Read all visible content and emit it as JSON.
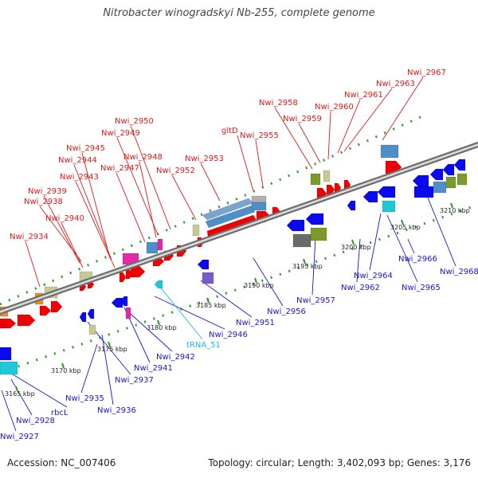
{
  "title": "Nitrobacter winogradskyi Nb-255, complete genome",
  "footer": {
    "accession": "Accession: NC_007406",
    "topology": "Topology: circular; Length: 3,402,093 bp; Genes: 3,176"
  },
  "colors": {
    "forward_label": "#e01818",
    "reverse_label": "#1818cc",
    "trna_label": "#22b8e6",
    "backbone": "#888888",
    "tick_track": "#2e9a2e"
  },
  "scale": {
    "ticks": [
      {
        "label": "3165 kbp"
      },
      {
        "label": "3170 kbp"
      },
      {
        "label": "3175 kbp"
      },
      {
        "label": "3180 kbp"
      },
      {
        "label": "3185 kbp"
      },
      {
        "label": "3190 kbp"
      },
      {
        "label": "3195 kbp"
      },
      {
        "label": "3200 kbp"
      },
      {
        "label": "3205 kbp"
      },
      {
        "label": "3210 kbp"
      }
    ]
  },
  "forward_labels": [
    "Nwi_2934",
    "Nwi_2938",
    "Nwi_2939",
    "Nwi_2940",
    "Nwi_2943",
    "Nwi_2944",
    "Nwi_2945",
    "Nwi_2947",
    "Nwi_2948",
    "Nwi_2949",
    "Nwi_2950",
    "Nwi_2952",
    "Nwi_2953",
    "gltD",
    "Nwi_2955",
    "Nwi_2958",
    "Nwi_2959",
    "Nwi_2960",
    "Nwi_2961",
    "Nwi_2963",
    "Nwi_2967"
  ],
  "reverse_labels": [
    "Nwi_2927",
    "Nwi_2928",
    "rbcL",
    "Nwi_2935",
    "Nwi_2936",
    "Nwi_2937",
    "Nwi_2941",
    "Nwi_2942",
    "Nwi_2946",
    "Nwi_2951",
    "Nwi_2956",
    "Nwi_2957",
    "Nwi_2962",
    "Nwi_2964",
    "Nwi_2965",
    "Nwi_2966",
    "Nwi_2968"
  ],
  "trna_labels": [
    "tRNA_51"
  ]
}
